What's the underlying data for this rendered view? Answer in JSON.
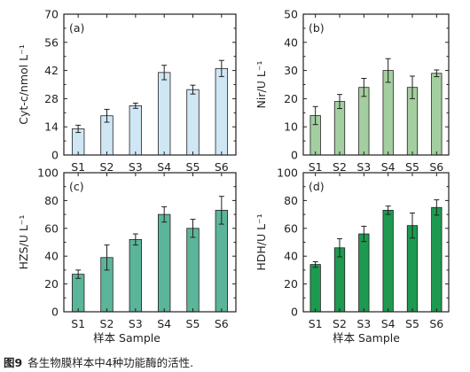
{
  "colors": {
    "a": "#cfe7f5",
    "b": "#a3cfa0",
    "c": "#5bb59a",
    "d": "#1d9a50",
    "axis": "#231f20",
    "bar_edge": "#231f20"
  },
  "x_axis_title": "样本 Sample",
  "caption": {
    "number": "图9",
    "text": "各生物膜样本中4种功能酶的活性."
  },
  "chart_data": [
    {
      "type": "bar",
      "panel": "(a)",
      "ylabel": "Cyt-c/nmol L⁻¹",
      "categories": [
        "S1",
        "S2",
        "S3",
        "S4",
        "S5",
        "S6"
      ],
      "values": [
        13,
        19.5,
        24.5,
        41,
        32.5,
        43
      ],
      "errors": [
        1.8,
        3.2,
        1.3,
        3.6,
        2.2,
        4.0
      ],
      "ylim": [
        0,
        70
      ],
      "yticks": [
        "0",
        "14",
        "28",
        "42",
        "56",
        "70"
      ],
      "bar_color": "#cfe7f5"
    },
    {
      "type": "bar",
      "panel": "(b)",
      "ylabel": "Nir/U L⁻¹",
      "categories": [
        "S1",
        "S2",
        "S3",
        "S4",
        "S5",
        "S6"
      ],
      "values": [
        14,
        19,
        24,
        30,
        24,
        29
      ],
      "errors": [
        3.2,
        2.5,
        3.2,
        4.2,
        4.0,
        1.2
      ],
      "ylim": [
        0,
        50
      ],
      "yticks": [
        "0",
        "10",
        "20",
        "30",
        "40",
        "50"
      ],
      "bar_color": "#a3cfa0"
    },
    {
      "type": "bar",
      "panel": "(c)",
      "ylabel": "HZS/U L⁻¹",
      "categories": [
        "S1",
        "S2",
        "S3",
        "S4",
        "S5",
        "S6"
      ],
      "values": [
        27,
        39,
        52,
        70,
        60,
        73
      ],
      "errors": [
        3.0,
        9.0,
        4.0,
        5.5,
        6.5,
        10.0
      ],
      "ylim": [
        0,
        100
      ],
      "yticks": [
        "0",
        "20",
        "40",
        "60",
        "80",
        "100"
      ],
      "bar_color": "#5bb59a"
    },
    {
      "type": "bar",
      "panel": "(d)",
      "ylabel": "HDH/U L⁻¹",
      "categories": [
        "S1",
        "S2",
        "S3",
        "S4",
        "S5",
        "S6"
      ],
      "values": [
        34,
        46,
        56,
        73,
        62,
        75
      ],
      "errors": [
        2.0,
        6.5,
        5.5,
        3.0,
        9.0,
        5.5
      ],
      "ylim": [
        0,
        100
      ],
      "yticks": [
        "0",
        "20",
        "40",
        "60",
        "80",
        "100"
      ],
      "bar_color": "#1d9a50"
    }
  ]
}
